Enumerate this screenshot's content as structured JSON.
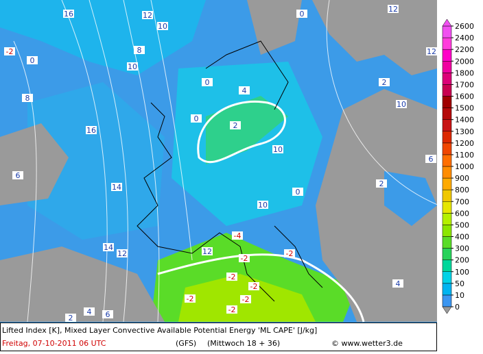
{
  "legend": {
    "labels": [
      0,
      10,
      50,
      100,
      200,
      300,
      400,
      500,
      600,
      700,
      800,
      900,
      1000,
      1100,
      1200,
      1300,
      1400,
      1500,
      1600,
      1700,
      1800,
      2000,
      2200,
      2400,
      2600
    ],
    "colors": [
      "#3c96f0",
      "#00b4f0",
      "#00d2e6",
      "#00d79b",
      "#28d25a",
      "#5adc28",
      "#8ce600",
      "#b4f000",
      "#e6e600",
      "#f0c800",
      "#ffaa00",
      "#ff8c00",
      "#ff6e00",
      "#f04600",
      "#dc2800",
      "#c81414",
      "#b40a0a",
      "#a00000",
      "#c80050",
      "#dc0078",
      "#f000a0",
      "#ff00c8",
      "#ff3cdc",
      "#f050f0"
    ]
  },
  "contour_labels": [
    "16",
    "12",
    "10",
    "-2",
    "0",
    "8",
    "10",
    "8",
    "16",
    "6",
    "14",
    "0",
    "0",
    "2",
    "4",
    "10",
    "10",
    "12",
    "14",
    "12",
    "-4",
    "-2",
    "-2",
    "-2",
    "-2",
    "-2",
    "-2",
    "-2",
    "0",
    "2",
    "4",
    "6",
    "12",
    "12",
    "10",
    "0",
    "2",
    "2",
    "4",
    "6"
  ],
  "caption": {
    "title": "Lifted Index [K], Mixed Layer Convective Available Potential Energy 'ML CAPE' [J/kg]",
    "date": "Freitag, 07-10-2011  06 UTC",
    "model": "(GFS)",
    "run": "(Mittwoch 18 + 36)",
    "credit": "© www.wetter3.de"
  }
}
